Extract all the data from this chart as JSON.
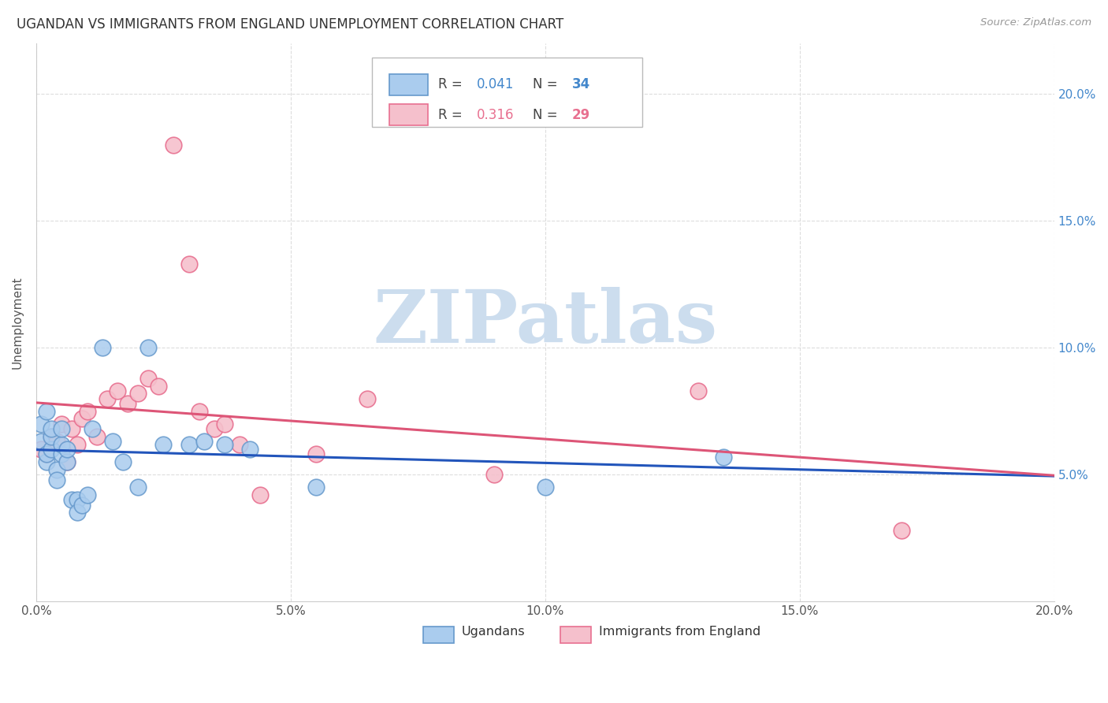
{
  "title": "UGANDAN VS IMMIGRANTS FROM ENGLAND UNEMPLOYMENT CORRELATION CHART",
  "source": "Source: ZipAtlas.com",
  "ylabel": "Unemployment",
  "xlim": [
    0.0,
    0.2
  ],
  "ylim": [
    0.0,
    0.22
  ],
  "xticks": [
    0.0,
    0.05,
    0.1,
    0.15,
    0.2
  ],
  "yticks": [
    0.05,
    0.1,
    0.15,
    0.2
  ],
  "xtick_labels": [
    "0.0%",
    "5.0%",
    "10.0%",
    "15.0%",
    "20.0%"
  ],
  "right_ytick_labels": [
    "5.0%",
    "10.0%",
    "15.0%",
    "20.0%"
  ],
  "ugandan_x": [
    0.001,
    0.001,
    0.002,
    0.002,
    0.002,
    0.003,
    0.003,
    0.003,
    0.004,
    0.004,
    0.005,
    0.005,
    0.005,
    0.006,
    0.006,
    0.007,
    0.008,
    0.008,
    0.009,
    0.01,
    0.011,
    0.013,
    0.015,
    0.017,
    0.02,
    0.022,
    0.025,
    0.03,
    0.033,
    0.037,
    0.042,
    0.055,
    0.1,
    0.135
  ],
  "ugandan_y": [
    0.063,
    0.07,
    0.055,
    0.058,
    0.075,
    0.06,
    0.065,
    0.068,
    0.052,
    0.048,
    0.058,
    0.062,
    0.068,
    0.055,
    0.06,
    0.04,
    0.04,
    0.035,
    0.038,
    0.042,
    0.068,
    0.1,
    0.063,
    0.055,
    0.045,
    0.1,
    0.062,
    0.062,
    0.063,
    0.062,
    0.06,
    0.045,
    0.045,
    0.057
  ],
  "england_x": [
    0.001,
    0.002,
    0.003,
    0.004,
    0.005,
    0.006,
    0.007,
    0.008,
    0.009,
    0.01,
    0.012,
    0.014,
    0.016,
    0.018,
    0.02,
    0.022,
    0.024,
    0.027,
    0.03,
    0.032,
    0.035,
    0.037,
    0.04,
    0.044,
    0.055,
    0.065,
    0.09,
    0.13,
    0.17
  ],
  "england_y": [
    0.06,
    0.058,
    0.065,
    0.063,
    0.07,
    0.055,
    0.068,
    0.062,
    0.072,
    0.075,
    0.065,
    0.08,
    0.083,
    0.078,
    0.082,
    0.088,
    0.085,
    0.18,
    0.133,
    0.075,
    0.068,
    0.07,
    0.062,
    0.042,
    0.058,
    0.08,
    0.05,
    0.083,
    0.028
  ],
  "ugandan_R": 0.041,
  "ugandan_N": 34,
  "england_R": 0.316,
  "england_N": 29,
  "blue_dot_color": "#aaccee",
  "blue_dot_edge": "#6699cc",
  "pink_dot_color": "#f5c0cc",
  "pink_dot_edge": "#e87090",
  "blue_line_color": "#2255bb",
  "pink_line_color": "#dd5577",
  "watermark_color": "#ccddee",
  "background_color": "#ffffff",
  "grid_color": "#dddddd",
  "right_tick_color": "#4488cc",
  "watermark_text": "ZIPatlas"
}
